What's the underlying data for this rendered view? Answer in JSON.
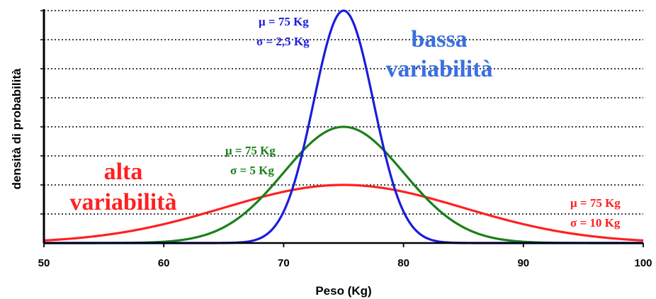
{
  "chart_data": {
    "type": "line",
    "title": "",
    "xlabel": "Peso (Kg)",
    "ylabel": "densità di probabilità",
    "xlim": [
      50,
      100
    ],
    "x_ticks": [
      "50",
      "60",
      "70",
      "80",
      "90",
      "100"
    ],
    "y_ticks_labeled": false,
    "grid": "horizontal dotted",
    "series": [
      {
        "mean": 75,
        "sd": 10,
        "color": "#ff2020",
        "annotation": [
          "μ = 75 Kg",
          "σ = 10 Kg"
        ]
      },
      {
        "mean": 75,
        "sd": 5,
        "color": "#1a801a",
        "annotation": [
          "μ = 75 Kg",
          "σ = 5 Kg"
        ]
      },
      {
        "mean": 75,
        "sd": 2.5,
        "color": "#1c1cdc",
        "annotation": [
          "μ = 75 Kg",
          "σ = 2,5 Kg"
        ]
      }
    ],
    "callouts": {
      "low_variability": [
        "bassa",
        "variabilità"
      ],
      "high_variability": [
        "alta",
        "variabilità"
      ]
    },
    "callout_colors": {
      "low_variability": "#3a6fe0",
      "high_variability": "#ff2020"
    }
  }
}
